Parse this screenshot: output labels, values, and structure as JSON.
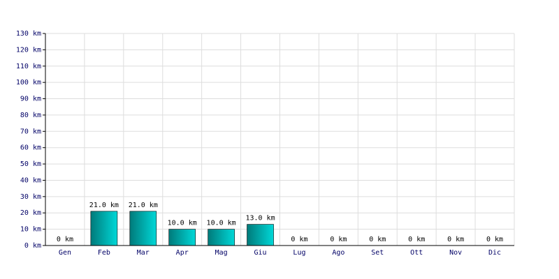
{
  "chart_data": {
    "type": "bar",
    "categories": [
      "Gen",
      "Feb",
      "Mar",
      "Apr",
      "Mag",
      "Giu",
      "Lug",
      "Ago",
      "Set",
      "Ott",
      "Nov",
      "Dic"
    ],
    "values": [
      0,
      21,
      21,
      10,
      10,
      13,
      0,
      0,
      0,
      0,
      0,
      0
    ],
    "value_labels": [
      "0 km",
      "21.0 km",
      "21.0 km",
      "10.0 km",
      "10.0 km",
      "13.0 km",
      "0 km",
      "0 km",
      "0 km",
      "0 km",
      "0 km",
      "0 km"
    ],
    "color": "#00d8d8",
    "ylim": [
      0,
      130
    ],
    "yticks": [
      {
        "value": 0,
        "label": "0 km"
      },
      {
        "value": 10,
        "label": "10 km"
      },
      {
        "value": 20,
        "label": "20 km"
      },
      {
        "value": 30,
        "label": "30 km"
      },
      {
        "value": 40,
        "label": "40 km"
      },
      {
        "value": 50,
        "label": "50 km"
      },
      {
        "value": 60,
        "label": "60 km"
      },
      {
        "value": 70,
        "label": "70 km"
      },
      {
        "value": 80,
        "label": "80 km"
      },
      {
        "value": 90,
        "label": "90 km"
      },
      {
        "value": 100,
        "label": "100 km"
      },
      {
        "value": 110,
        "label": "110 km"
      },
      {
        "value": 120,
        "label": "120 km"
      },
      {
        "value": 130,
        "label": "130 km"
      }
    ],
    "grid": true
  }
}
